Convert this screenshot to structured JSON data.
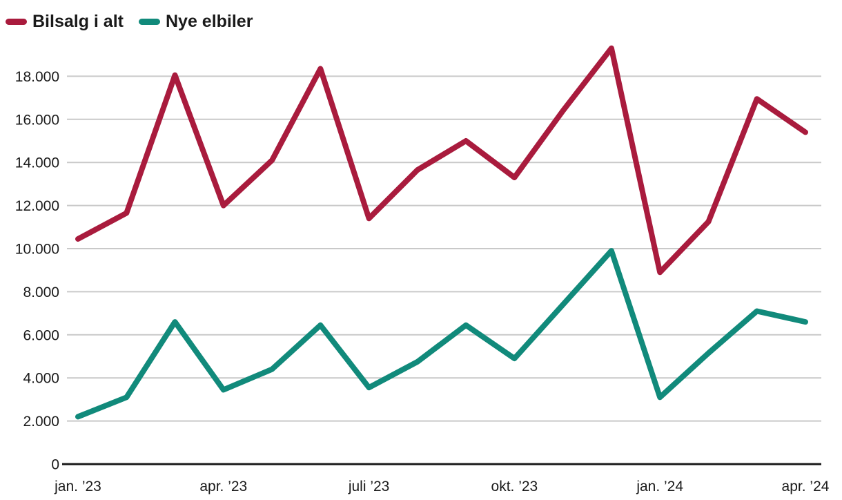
{
  "chart_data": {
    "type": "line",
    "title": "",
    "categories": [
      "jan. ’23",
      "feb. ’23",
      "mar. ’23",
      "apr. ’23",
      "maj ’23",
      "juni ’23",
      "juli ’23",
      "aug. ’23",
      "sep. ’23",
      "okt. ’23",
      "nov. ’23",
      "dec. ’23",
      "jan. ’24",
      "feb. ’24",
      "mar. ’24",
      "apr. ’24"
    ],
    "x_tick_indices": [
      0,
      3,
      6,
      9,
      12,
      15
    ],
    "x_tick_labels": [
      "jan. ’23",
      "apr. ’23",
      "juli ’23",
      "okt. ’23",
      "jan. ’24",
      "apr. ’24"
    ],
    "series": [
      {
        "name": "Bilsalg i alt",
        "color": "#A91B3D",
        "values": [
          10450,
          11650,
          18050,
          12000,
          14100,
          18350,
          11400,
          13650,
          15000,
          13300,
          16400,
          19300,
          8900,
          11250,
          16950,
          15400
        ]
      },
      {
        "name": "Nye elbiler",
        "color": "#118A7B",
        "values": [
          2200,
          3100,
          6600,
          3450,
          4400,
          6450,
          3550,
          4750,
          6450,
          4900,
          7400,
          9900,
          3100,
          5150,
          7100,
          6600
        ]
      }
    ],
    "y_axis": {
      "min": 0,
      "max": 19600,
      "tick_step": 2000,
      "ticks": [
        0,
        2000,
        4000,
        6000,
        8000,
        10000,
        12000,
        14000,
        16000,
        18000
      ],
      "tick_labels": [
        "0",
        "2.000",
        "4.000",
        "6.000",
        "8.000",
        "10.000",
        "12.000",
        "14.000",
        "16.000",
        "18.000"
      ]
    },
    "grid": true,
    "legend_position": "top-left",
    "colors": {
      "grid_line": "#C9C9C9",
      "zero_line": "#1A1A1A",
      "axis_text": "#1A1A1A",
      "background": "#FFFFFF"
    }
  }
}
